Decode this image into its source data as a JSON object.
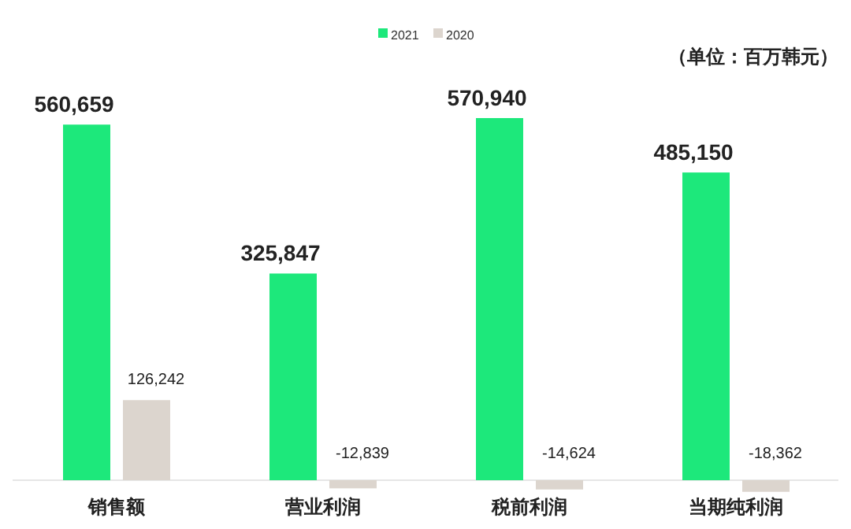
{
  "chart_data": {
    "type": "bar",
    "categories": [
      "销售额",
      "营业利润",
      "税前利润",
      "当期纯利润"
    ],
    "series": [
      {
        "name": "2021",
        "color": "#1de87b",
        "values": [
          560659,
          325847,
          570940,
          485150
        ],
        "value_labels": [
          "560,659",
          "325,847",
          "570,940",
          "485,150"
        ]
      },
      {
        "name": "2020",
        "color": "#dcd5ce",
        "values": [
          126242,
          -12839,
          -14624,
          -18362
        ],
        "value_labels": [
          "126,242",
          "-12,839",
          "-14,624",
          "-18,362"
        ]
      }
    ],
    "legend": "top",
    "annotations": [
      "（单位：百万韩元）"
    ]
  }
}
